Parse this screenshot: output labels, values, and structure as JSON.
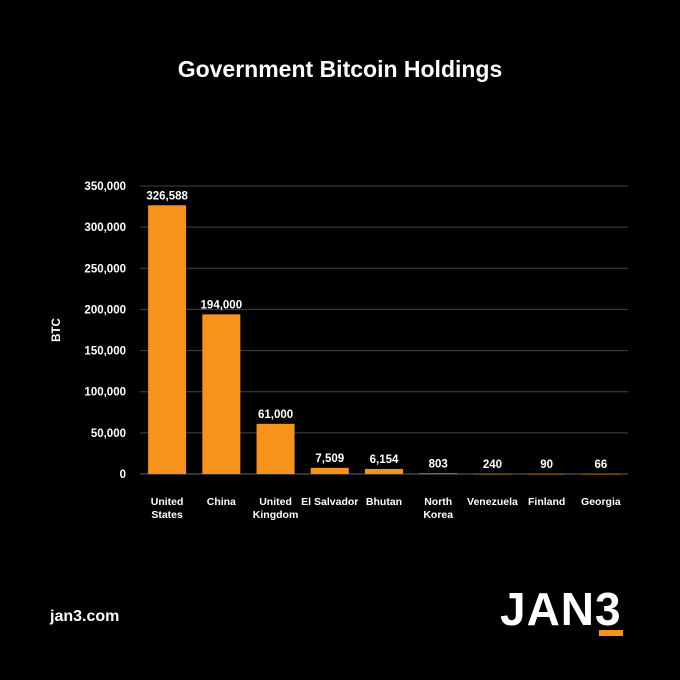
{
  "chart_data": {
    "type": "bar",
    "title": "Government Bitcoin Holdings",
    "ylabel": "BTC",
    "xlabel": "",
    "ylim": [
      0,
      350000
    ],
    "yticks": [
      0,
      50000,
      100000,
      150000,
      200000,
      250000,
      300000,
      350000
    ],
    "ytick_labels": [
      "0",
      "50,000",
      "100,000",
      "150,000",
      "200,000",
      "250,000",
      "300,000",
      "350,000"
    ],
    "categories": [
      [
        "United",
        "States"
      ],
      [
        "China"
      ],
      [
        "United",
        "Kingdom"
      ],
      [
        "El Salvador"
      ],
      [
        "Bhutan"
      ],
      [
        "North",
        "Korea"
      ],
      [
        "Venezuela"
      ],
      [
        "Finland"
      ],
      [
        "Georgia"
      ]
    ],
    "values": [
      326588,
      194000,
      61000,
      7509,
      6154,
      803,
      240,
      90,
      66
    ],
    "value_labels": [
      "326,588",
      "194,000",
      "61,000",
      "7,509",
      "6,154",
      "803",
      "240",
      "90",
      "66"
    ],
    "grid": true,
    "bar_color": "#f7931a",
    "grid_color": "#444444"
  },
  "footer": {
    "url": "jan3.com",
    "logo_text": "JAN",
    "logo_three": "3"
  },
  "colors": {
    "background": "#000000",
    "accent": "#f7931a",
    "text": "#ffffff"
  }
}
